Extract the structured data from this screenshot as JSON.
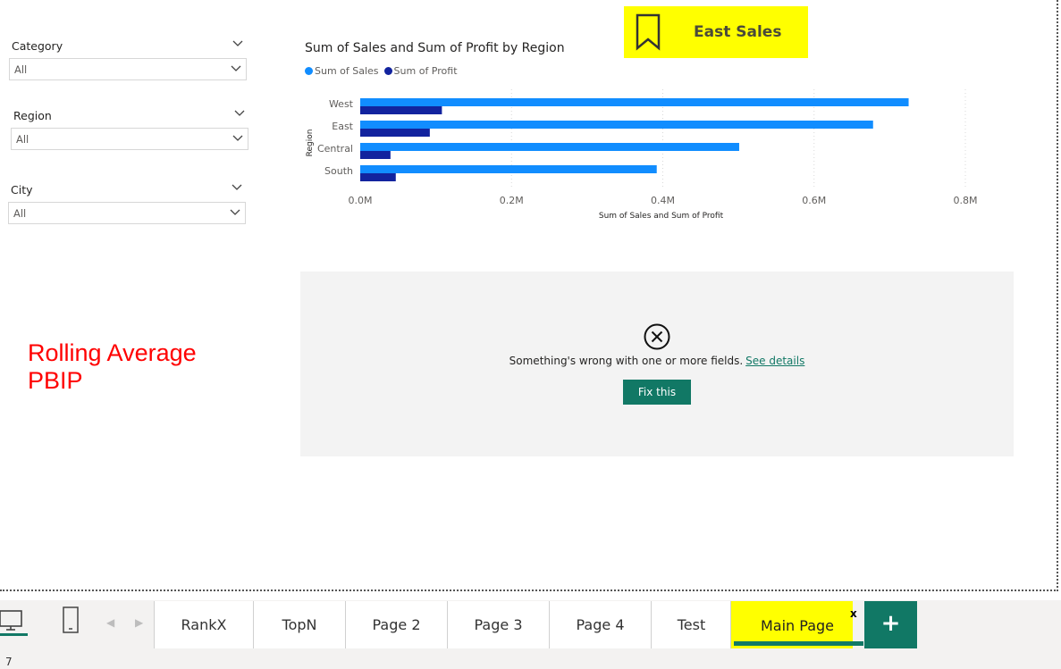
{
  "slicers": [
    {
      "label": "Category",
      "value": "All"
    },
    {
      "label": "Region",
      "value": "All"
    },
    {
      "label": "City",
      "value": "All"
    }
  ],
  "watermark": {
    "line1": "Rolling Average",
    "line2": "PBIP"
  },
  "bookmark": {
    "label": "East Sales",
    "color": "#ffff00"
  },
  "chart_data": {
    "type": "bar",
    "orientation": "horizontal",
    "title": "Sum of Sales and Sum of Profit by Region",
    "xlabel": "Sum of Sales and Sum of Profit",
    "ylabel": "Region",
    "categories": [
      "West",
      "East",
      "Central",
      "South"
    ],
    "series": [
      {
        "name": "Sum of Sales",
        "color": "#118dff",
        "values": [
          725000,
          678000,
          501000,
          392000
        ]
      },
      {
        "name": "Sum of Profit",
        "color": "#12239e",
        "values": [
          108000,
          92000,
          40000,
          47000
        ]
      }
    ],
    "xlim": [
      0,
      800000
    ],
    "xticks": [
      "0.0M",
      "0.2M",
      "0.4M",
      "0.6M",
      "0.8M"
    ],
    "grid": true,
    "legend_position": "top-left"
  },
  "error_panel": {
    "message": "Something's wrong with one or more fields.",
    "link": "See details",
    "button": "Fix this"
  },
  "tabs": [
    {
      "label": "RankX",
      "active": false
    },
    {
      "label": "TopN",
      "active": false
    },
    {
      "label": "Page 2",
      "active": false
    },
    {
      "label": "Page 3",
      "active": false
    },
    {
      "label": "Page 4",
      "active": false
    },
    {
      "label": "Test",
      "active": false
    },
    {
      "label": "Main Page",
      "active": true
    }
  ],
  "tab_close": "x",
  "add_tab": "+",
  "status": {
    "page_number": "7"
  },
  "colors": {
    "accent": "#117865",
    "highlight": "#ffff00"
  }
}
